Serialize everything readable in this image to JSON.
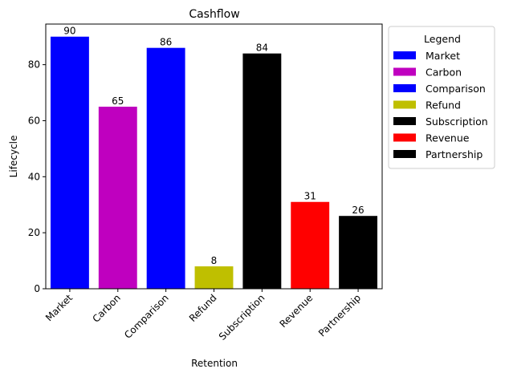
{
  "chart_data": {
    "type": "bar",
    "title": "Cashflow",
    "xlabel": "Retention",
    "ylabel": "Lifecycle",
    "categories": [
      "Market",
      "Carbon",
      "Comparison",
      "Refund",
      "Subscription",
      "Revenue",
      "Partnership"
    ],
    "values": [
      90,
      65,
      86,
      8,
      84,
      31,
      26
    ],
    "colors": [
      "#0000ff",
      "#bf00bf",
      "#0000ff",
      "#bfbf00",
      "#000000",
      "#ff0000",
      "#000000"
    ],
    "ylim": [
      0,
      94.5
    ],
    "yticks": [
      0,
      20,
      40,
      60,
      80
    ],
    "grid": false,
    "legend": {
      "title": "Legend",
      "placement": "outside-right-top",
      "entries": [
        "Market",
        "Carbon",
        "Comparison",
        "Refund",
        "Subscription",
        "Revenue",
        "Partnership"
      ]
    }
  }
}
